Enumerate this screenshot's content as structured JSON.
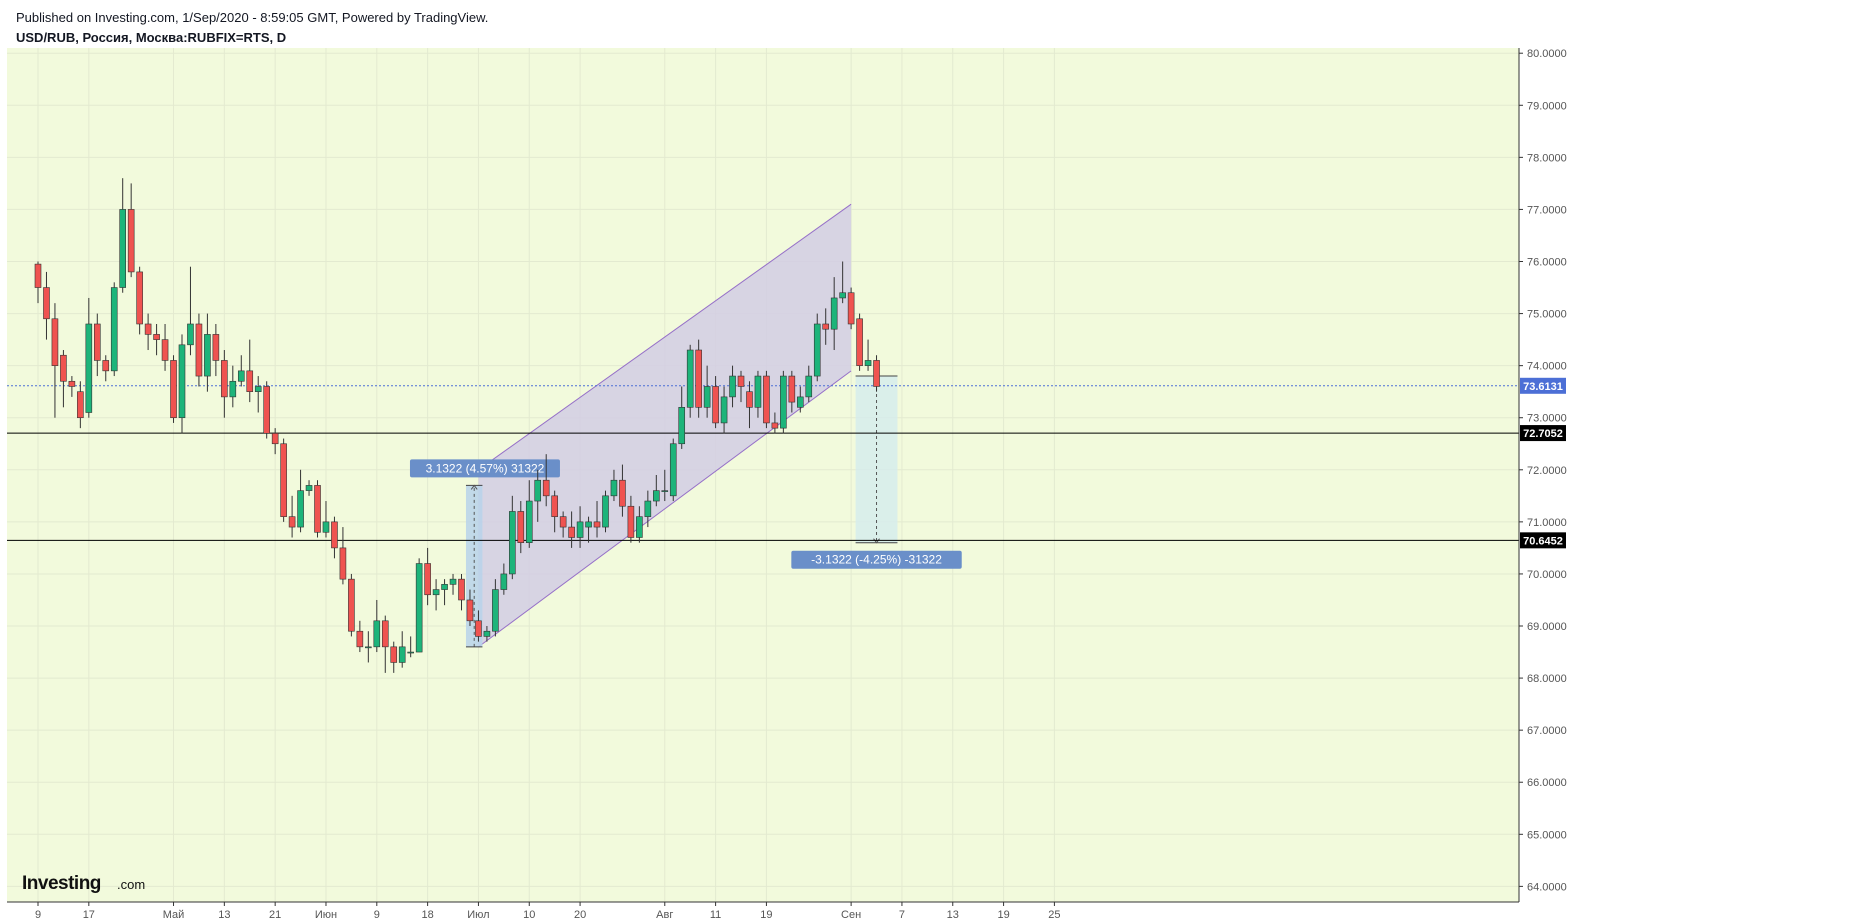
{
  "header": {
    "published": "Published on Investing.com, 1/Sep/2020 - 8:59:05 GMT, Powered by TradingView.",
    "symbol": "USD/RUB, Россия, Москва:RUBFIX=RTS, D"
  },
  "logo": {
    "main": "Investing",
    "suffix": ".com"
  },
  "colors": {
    "plot_bg": "#f2fadc",
    "up": "#1db47a",
    "down": "#ef5350",
    "wick": "#333333",
    "channel_fill": "#d2cde4",
    "channel_line": "#9670c8",
    "current_line": "#4c6fd6",
    "level_line": "#000000",
    "measure_up_fill": "#b9d2ea",
    "measure_down_fill": "#d6ecec",
    "measure_label_bg": "#6a8fc9"
  },
  "chart_data": {
    "type": "candlestick",
    "title": "USD/RUB, Россия, Москва:RUBFIX=RTS, D",
    "ylim": [
      63.7,
      80.1
    ],
    "y_ticks": [
      "80.0000",
      "79.0000",
      "78.0000",
      "77.0000",
      "76.0000",
      "75.0000",
      "74.0000",
      "73.0000",
      "72.0000",
      "71.0000",
      "70.0000",
      "69.0000",
      "68.0000",
      "67.0000",
      "66.0000",
      "65.0000",
      "64.0000"
    ],
    "x_ticks": [
      {
        "label": "9",
        "i": 0
      },
      {
        "label": "17",
        "i": 6
      },
      {
        "label": "Май",
        "i": 16
      },
      {
        "label": "13",
        "i": 22
      },
      {
        "label": "21",
        "i": 28
      },
      {
        "label": "Июн",
        "i": 34
      },
      {
        "label": "9",
        "i": 40
      },
      {
        "label": "18",
        "i": 46
      },
      {
        "label": "Июл",
        "i": 52
      },
      {
        "label": "10",
        "i": 58
      },
      {
        "label": "20",
        "i": 64
      },
      {
        "label": "Авг",
        "i": 74
      },
      {
        "label": "11",
        "i": 80
      },
      {
        "label": "19",
        "i": 86
      },
      {
        "label": "Сен",
        "i": 96
      },
      {
        "label": "7",
        "i": 102
      },
      {
        "label": "13",
        "i": 108
      },
      {
        "label": "19",
        "i": 114
      },
      {
        "label": "25",
        "i": 120
      }
    ],
    "candles": [
      [
        75.95,
        75.5,
        76.0,
        75.2
      ],
      [
        75.5,
        74.9,
        75.8,
        74.5
      ],
      [
        74.9,
        74.0,
        75.2,
        73.0
      ],
      [
        74.2,
        73.7,
        74.3,
        73.2
      ],
      [
        73.7,
        73.6,
        73.8,
        73.4
      ],
      [
        73.5,
        73.0,
        73.7,
        72.8
      ],
      [
        73.1,
        74.8,
        75.3,
        73.0
      ],
      [
        74.8,
        74.1,
        75.0,
        73.8
      ],
      [
        74.1,
        73.9,
        74.2,
        73.7
      ],
      [
        73.9,
        75.5,
        75.6,
        73.8
      ],
      [
        75.5,
        77.0,
        77.6,
        75.4
      ],
      [
        77.0,
        75.8,
        77.5,
        75.7
      ],
      [
        75.8,
        74.8,
        75.9,
        74.6
      ],
      [
        74.8,
        74.6,
        75.0,
        74.3
      ],
      [
        74.6,
        74.5,
        74.8,
        74.2
      ],
      [
        74.5,
        74.1,
        74.8,
        73.9
      ],
      [
        74.1,
        73.0,
        74.2,
        72.9
      ],
      [
        73.0,
        74.4,
        74.6,
        72.7
      ],
      [
        74.4,
        74.8,
        75.9,
        74.2
      ],
      [
        74.8,
        73.8,
        75.0,
        73.6
      ],
      [
        73.8,
        74.6,
        75.0,
        73.5
      ],
      [
        74.6,
        74.1,
        74.8,
        73.8
      ],
      [
        74.1,
        73.4,
        74.3,
        73.0
      ],
      [
        73.4,
        73.7,
        74.0,
        73.2
      ],
      [
        73.7,
        73.9,
        74.2,
        73.6
      ],
      [
        73.9,
        73.5,
        74.5,
        73.3
      ],
      [
        73.5,
        73.6,
        73.8,
        73.1
      ],
      [
        73.6,
        72.7,
        73.7,
        72.6
      ],
      [
        72.7,
        72.5,
        72.8,
        72.3
      ],
      [
        72.5,
        71.1,
        72.6,
        71.0
      ],
      [
        71.1,
        70.9,
        71.5,
        70.7
      ],
      [
        70.9,
        71.6,
        72.0,
        70.8
      ],
      [
        71.6,
        71.7,
        71.8,
        71.5
      ],
      [
        71.7,
        70.8,
        71.8,
        70.7
      ],
      [
        70.8,
        71.0,
        71.4,
        70.7
      ],
      [
        71.0,
        70.5,
        71.1,
        70.3
      ],
      [
        70.5,
        69.9,
        70.9,
        69.8
      ],
      [
        69.9,
        68.9,
        70.0,
        68.8
      ],
      [
        68.9,
        68.6,
        69.1,
        68.5
      ],
      [
        68.6,
        68.6,
        68.9,
        68.3
      ],
      [
        68.6,
        69.1,
        69.5,
        68.5
      ],
      [
        69.1,
        68.6,
        69.2,
        68.1
      ],
      [
        68.6,
        68.3,
        68.7,
        68.1
      ],
      [
        68.3,
        68.6,
        68.9,
        68.2
      ],
      [
        68.5,
        68.5,
        68.8,
        68.4
      ],
      [
        68.5,
        70.2,
        70.3,
        68.5
      ],
      [
        70.2,
        69.6,
        70.5,
        69.4
      ],
      [
        69.6,
        69.7,
        69.9,
        69.3
      ],
      [
        69.7,
        69.8,
        69.9,
        69.4
      ],
      [
        69.8,
        69.9,
        70.0,
        69.6
      ],
      [
        69.9,
        69.5,
        70.0,
        69.3
      ],
      [
        69.5,
        69.1,
        69.7,
        69.0
      ],
      [
        69.1,
        68.8,
        69.3,
        68.7
      ],
      [
        68.8,
        68.9,
        69.0,
        68.7
      ],
      [
        68.9,
        69.7,
        69.9,
        68.8
      ],
      [
        69.7,
        70.0,
        70.2,
        69.6
      ],
      [
        70.0,
        71.2,
        71.5,
        69.9
      ],
      [
        71.2,
        70.6,
        71.4,
        70.4
      ],
      [
        70.6,
        71.4,
        71.8,
        70.5
      ],
      [
        71.4,
        71.8,
        72.0,
        71.0
      ],
      [
        71.8,
        71.5,
        72.3,
        71.3
      ],
      [
        71.5,
        71.1,
        71.6,
        70.8
      ],
      [
        71.1,
        70.9,
        71.2,
        70.7
      ],
      [
        70.9,
        70.7,
        71.2,
        70.5
      ],
      [
        70.7,
        71.0,
        71.3,
        70.5
      ],
      [
        70.9,
        71.0,
        71.1,
        70.6
      ],
      [
        71.0,
        70.9,
        71.4,
        70.7
      ],
      [
        70.9,
        71.5,
        71.6,
        70.8
      ],
      [
        71.5,
        71.8,
        72.0,
        71.4
      ],
      [
        71.8,
        71.3,
        72.1,
        71.1
      ],
      [
        71.3,
        70.7,
        71.5,
        70.6
      ],
      [
        70.7,
        71.1,
        71.3,
        70.6
      ],
      [
        71.1,
        71.4,
        71.6,
        70.9
      ],
      [
        71.4,
        71.6,
        71.9,
        71.3
      ],
      [
        71.6,
        71.6,
        72.0,
        71.4
      ],
      [
        71.5,
        72.5,
        72.6,
        71.4
      ],
      [
        72.5,
        73.2,
        73.6,
        72.4
      ],
      [
        73.2,
        74.3,
        74.4,
        73.0
      ],
      [
        74.3,
        73.2,
        74.5,
        73.0
      ],
      [
        73.2,
        73.6,
        74.0,
        73.0
      ],
      [
        73.6,
        72.9,
        73.8,
        72.8
      ],
      [
        72.9,
        73.4,
        73.6,
        72.7
      ],
      [
        73.4,
        73.8,
        74.0,
        73.2
      ],
      [
        73.8,
        73.6,
        73.9,
        73.3
      ],
      [
        73.5,
        73.2,
        73.7,
        72.8
      ],
      [
        73.2,
        73.8,
        73.9,
        73.0
      ],
      [
        73.8,
        72.9,
        73.9,
        72.8
      ],
      [
        72.9,
        72.8,
        73.1,
        72.7
      ],
      [
        72.8,
        73.8,
        73.9,
        72.7
      ],
      [
        73.8,
        73.3,
        73.9,
        73.1
      ],
      [
        73.2,
        73.4,
        73.6,
        73.1
      ],
      [
        73.4,
        73.8,
        74.0,
        73.3
      ],
      [
        73.8,
        74.8,
        75.0,
        73.7
      ],
      [
        74.8,
        74.7,
        75.1,
        74.4
      ],
      [
        74.7,
        75.3,
        75.7,
        74.3
      ],
      [
        75.3,
        75.4,
        76.0,
        75.2
      ],
      [
        75.4,
        74.8,
        75.5,
        74.7
      ],
      [
        74.9,
        74.0,
        75.0,
        73.9
      ],
      [
        74.0,
        74.1,
        74.5,
        73.9
      ],
      [
        74.1,
        73.6,
        74.2,
        73.5
      ]
    ],
    "channel": {
      "upper": [
        [
          52,
          72.0
        ],
        [
          96,
          77.1
        ]
      ],
      "lower": [
        [
          52,
          68.6
        ],
        [
          96,
          73.9
        ]
      ]
    },
    "current_price": {
      "value": 73.6131,
      "label": "73.6131"
    },
    "levels": [
      {
        "value": 72.7052,
        "label": "72.7052"
      },
      {
        "value": 70.6452,
        "label": "70.6452"
      }
    ],
    "measure_up": {
      "i_from": 51,
      "i_to": 52,
      "from": 68.6,
      "to": 71.7,
      "label": "3.1322 (4.57%) 31322"
    },
    "measure_down": {
      "i_from": 97,
      "i_to": 101,
      "from": 73.8,
      "to": 70.6,
      "label": "-3.1322 (-4.25%) -31322"
    }
  }
}
